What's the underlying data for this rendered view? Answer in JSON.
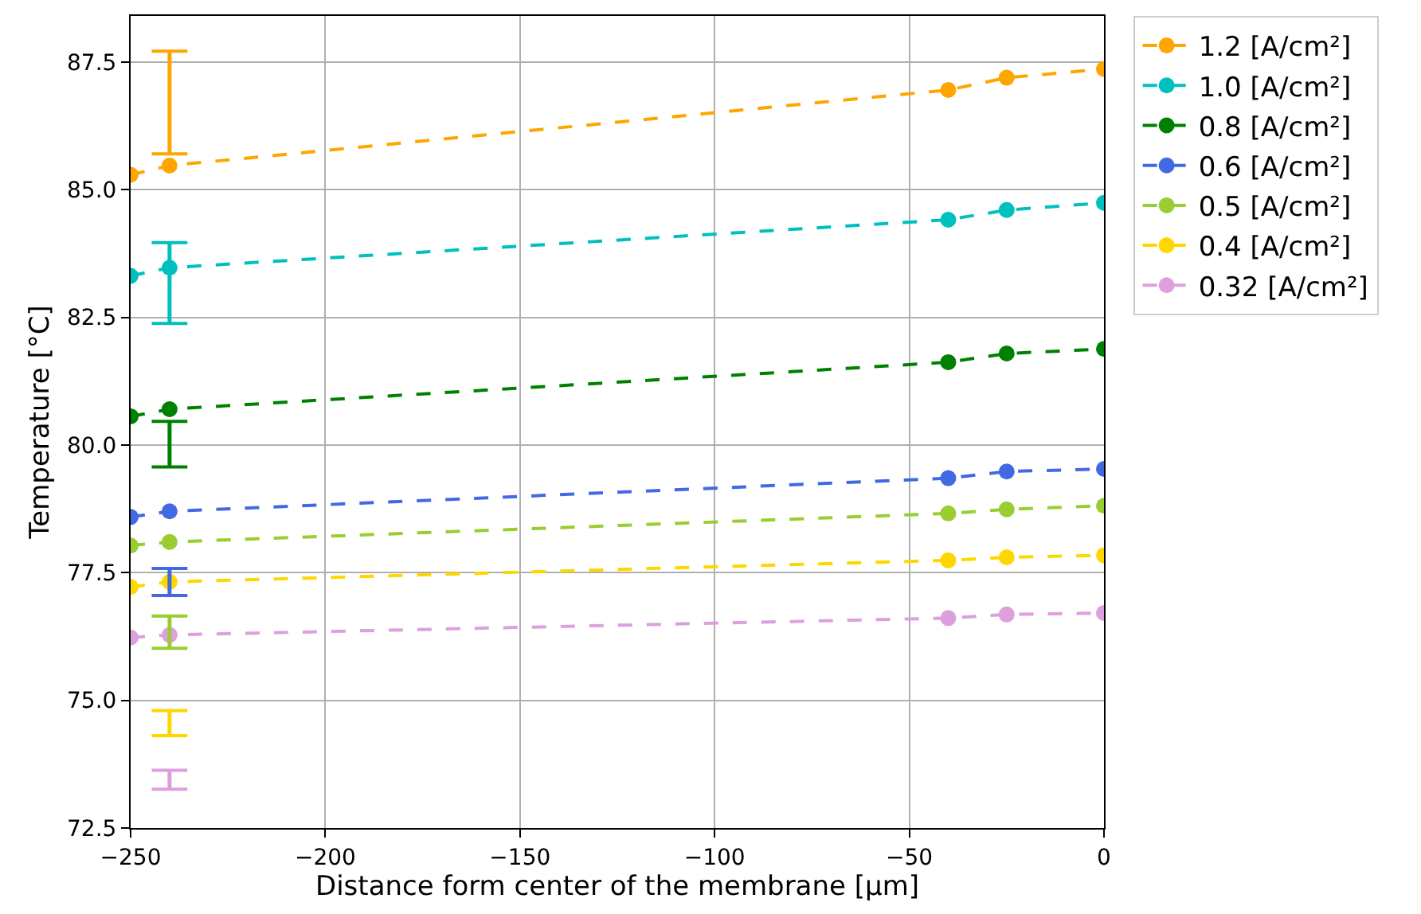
{
  "chart_data": {
    "type": "line",
    "xlabel": "Distance form center of the membrane [μm]",
    "ylabel": "Temperature [°C]",
    "x": [
      -250,
      -240,
      -40,
      -25,
      0
    ],
    "series": [
      {
        "name": "1.2 [A/cm²]",
        "color": "#ffa500",
        "values": [
          85.29,
          85.47,
          86.95,
          87.19,
          87.36
        ],
        "errors": [
          null,
          [
            85.7,
            87.71
          ],
          null,
          null,
          null
        ]
      },
      {
        "name": "1.0 [A/cm²]",
        "color": "#00bfbf",
        "values": [
          83.31,
          83.47,
          84.41,
          84.6,
          84.74
        ],
        "errors": [
          null,
          [
            82.38,
            83.96
          ],
          null,
          null,
          null
        ]
      },
      {
        "name": "0.8 [A/cm²]",
        "color": "#008000",
        "values": [
          80.56,
          80.7,
          81.62,
          81.79,
          81.88
        ],
        "errors": [
          null,
          [
            79.57,
            80.46
          ],
          null,
          null,
          null
        ]
      },
      {
        "name": "0.6 [A/cm²]",
        "color": "#4169e1",
        "values": [
          78.59,
          78.7,
          79.35,
          79.48,
          79.53
        ],
        "errors": [
          null,
          [
            77.05,
            77.58
          ],
          null,
          null,
          null
        ]
      },
      {
        "name": "0.5 [A/cm²]",
        "color": "#9acd32",
        "values": [
          78.03,
          78.1,
          78.66,
          78.74,
          78.81
        ],
        "errors": [
          null,
          [
            76.02,
            76.65
          ],
          null,
          null,
          null
        ]
      },
      {
        "name": "0.4 [A/cm²]",
        "color": "#ffd700",
        "values": [
          77.22,
          77.32,
          77.74,
          77.8,
          77.84
        ],
        "errors": [
          null,
          [
            74.31,
            74.8
          ],
          null,
          null,
          null
        ]
      },
      {
        "name": "0.32 [A/cm²]",
        "color": "#dda0dd",
        "values": [
          76.23,
          76.28,
          76.61,
          76.68,
          76.71
        ],
        "errors": [
          null,
          [
            73.26,
            73.63
          ],
          null,
          null,
          null
        ]
      }
    ],
    "xlim": [
      -250,
      0
    ],
    "xticks": [
      {
        "value": -250,
        "label": "−250"
      },
      {
        "value": -200,
        "label": "−200"
      },
      {
        "value": -150,
        "label": "−150"
      },
      {
        "value": -100,
        "label": "−100"
      },
      {
        "value": -50,
        "label": "−50"
      },
      0
    ],
    "ylim": [
      72.5,
      88.4
    ],
    "yticks": [
      {
        "value": 72.5,
        "label": "72.5"
      },
      {
        "value": 75,
        "label": "75.0"
      },
      {
        "value": 77.5,
        "label": "77.5"
      },
      {
        "value": 80,
        "label": "80.0"
      },
      {
        "value": 82.5,
        "label": "82.5"
      },
      {
        "value": 85,
        "label": "85.0"
      },
      {
        "value": 87.5,
        "label": "87.5"
      }
    ],
    "grid": true,
    "legend": "top right",
    "marker": "circle",
    "line_style": "dashed"
  }
}
